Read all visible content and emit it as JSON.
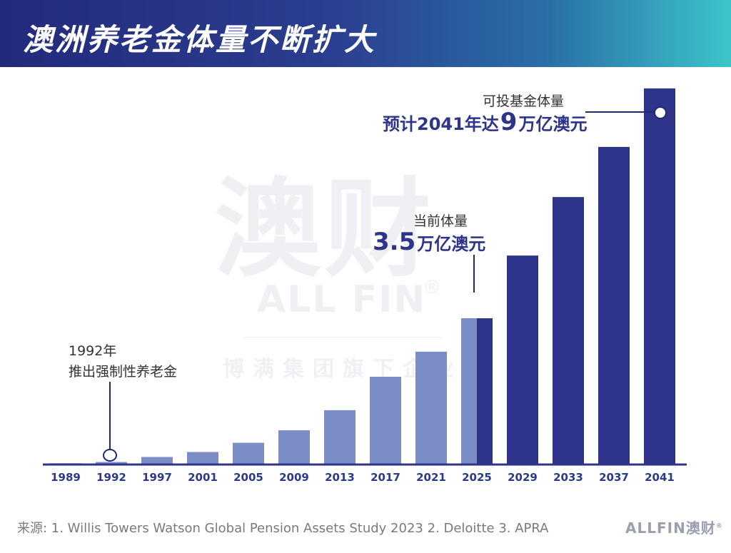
{
  "header": {
    "title": "澳洲养老金体量不断扩大"
  },
  "watermark": {
    "big": "澳财",
    "brand": "ALL FIN",
    "reg": "®",
    "sub": "博满集团旗下企业"
  },
  "annotations": {
    "start_year": "1992年",
    "start_text": "推出强制性养老金",
    "current_title": "当前体量",
    "current_number": "3.5",
    "current_unit": "万亿澳元",
    "future_title": "可投基金体量",
    "future_prefix": "预计2041年达",
    "future_number": "9",
    "future_unit": "万亿澳元"
  },
  "source": "来源: 1. Willis Towers Watson Global Pension Assets Study 2023 2. Deloitte 3. APRA",
  "footer_logo": {
    "text": "ALLFIN澳财",
    "reg": "®"
  },
  "colors": {
    "historical": "#7b8cc7",
    "projected": "#2d3489",
    "axis": "#2d3489",
    "callout_line": "#1f2a6e"
  },
  "chart_data": {
    "type": "bar",
    "categories": [
      "1989",
      "1992",
      "1997",
      "2001",
      "2005",
      "2009",
      "2013",
      "2017",
      "2021",
      "2025",
      "2029",
      "2033",
      "2037",
      "2041"
    ],
    "values": [
      0.03,
      0.06,
      0.18,
      0.3,
      0.52,
      0.82,
      1.3,
      2.1,
      2.7,
      3.5,
      5.0,
      6.4,
      7.6,
      9.0
    ],
    "segment_types": [
      "historical",
      "historical",
      "historical",
      "historical",
      "historical",
      "historical",
      "historical",
      "historical",
      "historical",
      "split",
      "projected",
      "projected",
      "projected",
      "projected"
    ],
    "unit": "万亿澳元",
    "ylim": [
      0,
      9.1
    ],
    "grid": false,
    "legend": "none"
  }
}
